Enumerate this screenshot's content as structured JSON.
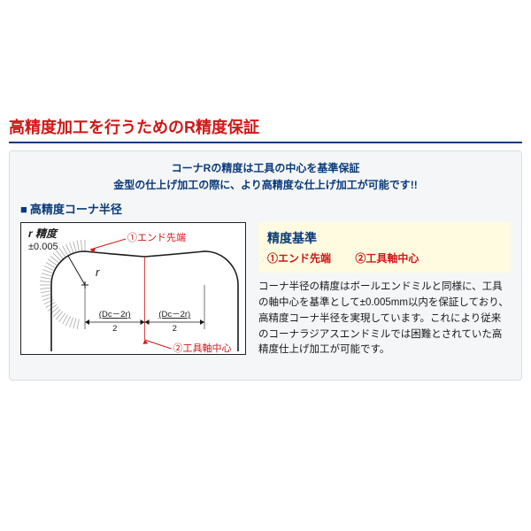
{
  "title": "高精度加工を行うためのR精度保証",
  "intro_line1": "コーナRの精度は工具の中心を基準保証",
  "intro_line2": "金型の仕上げ加工の際に、より高精度な仕上げ加工が可能です!!",
  "section_label": "高精度コーナ半径",
  "criteria_title": "精度基準",
  "criteria_1": "①エンド先端",
  "criteria_2": "②工具軸中心",
  "body": "コーナ半径の精度はボールエンドミルと同様に、工具の軸中心を基準として±0.005mm以内を保証しており、高精度コーナ半径を実現しています。これにより従来のコーナラジアスエンドミルでは困難とされていた高精度仕上げ加工が可能です。",
  "diagram": {
    "r_label_l1": "r 精度",
    "r_label_l2": "±0.005",
    "r_letter": "r",
    "callout_1": "①エンド先端",
    "callout_2": "②工具軸中心",
    "dim_left": "(Dc－2r)",
    "dim_div": "2",
    "dim_right": "(Dc－2r)",
    "colors": {
      "outline": "#1a1a1a",
      "red": "#d01818",
      "tick": "#a8a8a8"
    }
  },
  "colors": {
    "title_red": "#d01818",
    "rule_blue": "#0b3a7a",
    "navy": "#0b3a7a",
    "panel_bg": "#f4f6f8",
    "panel_border": "#d8dde2",
    "highlight_bg": "#fffbe0",
    "text": "#1a1a1a"
  }
}
